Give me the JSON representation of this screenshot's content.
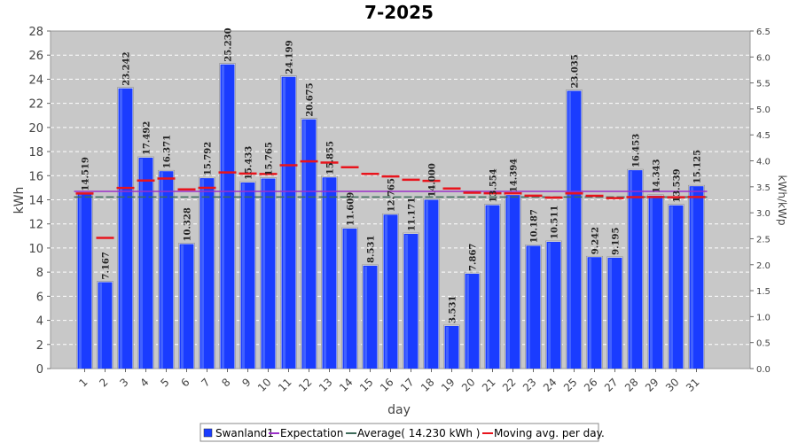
{
  "chart_data": {
    "type": "bar",
    "title": "7-2025",
    "xlabel": "day",
    "ylabel": "kWh",
    "y2label": "kWh/kWp",
    "ylim": [
      0,
      28
    ],
    "yticks": [
      0,
      2,
      4,
      6,
      8,
      10,
      12,
      14,
      16,
      18,
      20,
      22,
      24,
      26,
      28
    ],
    "y2lim": [
      0,
      6.5
    ],
    "y2ticks": [
      "0.0",
      "0.5",
      "1.0",
      "1.5",
      "2.0",
      "2.5",
      "3.0",
      "3.5",
      "4.0",
      "4.5",
      "5.0",
      "5.5",
      "6.0",
      "6.5"
    ],
    "grid": true,
    "legend_position": "bottom",
    "categories": [
      "1",
      "2",
      "3",
      "4",
      "5",
      "6",
      "7",
      "8",
      "9",
      "10",
      "11",
      "12",
      "13",
      "14",
      "15",
      "16",
      "17",
      "18",
      "19",
      "20",
      "21",
      "22",
      "23",
      "24",
      "25",
      "26",
      "27",
      "28",
      "29",
      "30",
      "31"
    ],
    "series": [
      {
        "name": "Swanland1",
        "kind": "bar",
        "color": "#1a3cff",
        "values": [
          14.519,
          7.167,
          23.242,
          17.492,
          16.371,
          10.328,
          15.792,
          25.23,
          15.433,
          15.765,
          24.199,
          20.675,
          15.855,
          11.609,
          8.531,
          12.765,
          11.171,
          14.0,
          3.531,
          7.867,
          13.554,
          14.394,
          10.187,
          10.511,
          23.035,
          9.242,
          9.195,
          16.453,
          14.343,
          13.539,
          15.125
        ],
        "labels": [
          "14.519",
          "7.167",
          "23.242",
          "17.492",
          "16.371",
          "10.328",
          "15.792",
          "25.230",
          "15.433",
          "15.765",
          "24.199",
          "20.675",
          "15.855",
          "11.609",
          "8.531",
          "12.765",
          "11.171",
          "14.000",
          "3.531",
          "7.867",
          "13.554",
          "14.394",
          "10.187",
          "10.511",
          "23.035",
          "9.242",
          "9.195",
          "16.453",
          "14.343",
          "13.539",
          "15.125"
        ]
      },
      {
        "name": "Expectation",
        "kind": "line",
        "color": "#9b30c8",
        "value": 14.7
      },
      {
        "name": "Average( 14.230 kWh )",
        "kind": "line",
        "color": "#3d6b5a",
        "value": 14.23
      },
      {
        "name": "Moving avg. per day.",
        "kind": "marker",
        "color": "#e8141c",
        "values": [
          14.52,
          10.84,
          14.98,
          15.6,
          15.76,
          14.86,
          14.99,
          16.27,
          16.18,
          16.14,
          16.87,
          17.19,
          17.09,
          16.7,
          16.15,
          15.94,
          15.66,
          15.57,
          14.94,
          14.59,
          14.54,
          14.53,
          14.34,
          14.18,
          14.53,
          14.33,
          14.14,
          14.22,
          14.23,
          14.21,
          14.23
        ]
      }
    ]
  }
}
